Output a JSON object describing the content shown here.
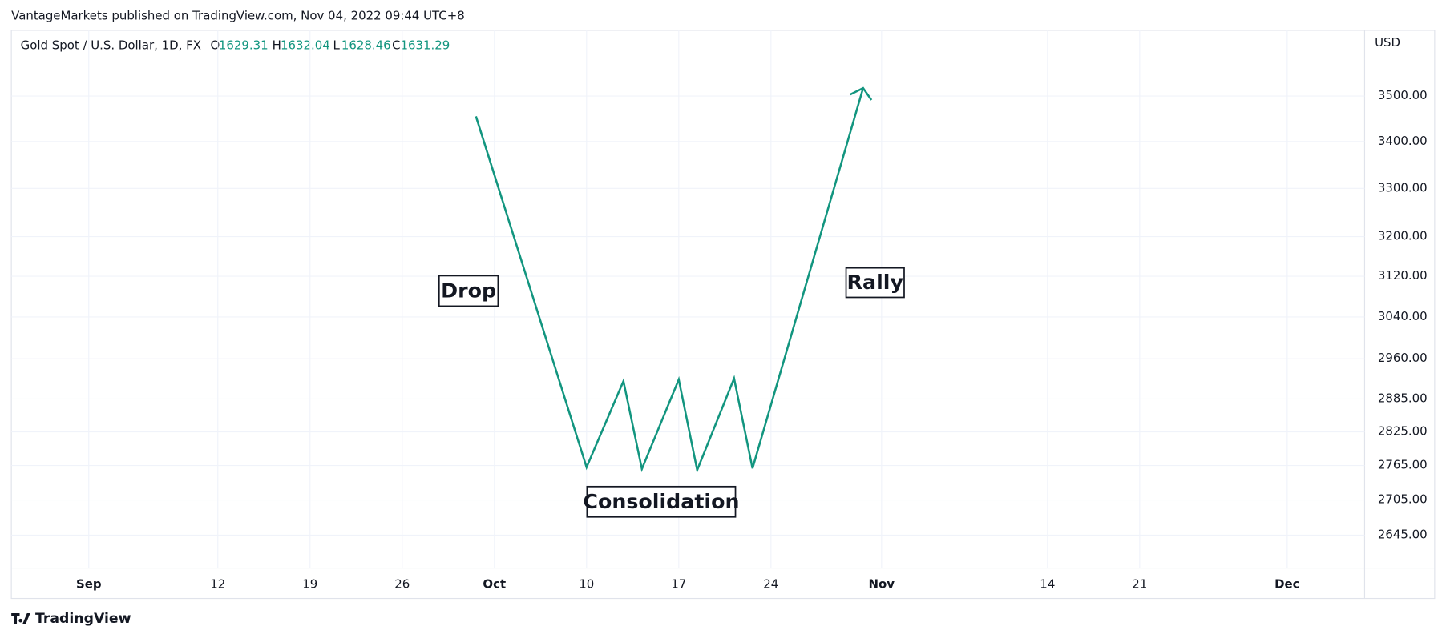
{
  "header": {
    "published": "VantageMarkets published on TradingView.com, Nov 04, 2022 09:44 UTC+8",
    "footer": "TradingView"
  },
  "chart_data": {
    "type": "line",
    "symbol": "Gold Spot / U.S. Dollar, 1D, FX",
    "ohlc": [
      {
        "label": "O",
        "value": 1629.31
      },
      {
        "label": "H",
        "value": 1632.04
      },
      {
        "label": "L",
        "value": 1628.46
      },
      {
        "label": "C",
        "value": 1631.29
      }
    ],
    "currency": "USD",
    "x": [
      21,
      27,
      29,
      30,
      32,
      33,
      35,
      36,
      42
    ],
    "values": [
      3455,
      2762,
      2918,
      2759,
      2921,
      2757,
      2923,
      2760,
      3518
    ],
    "color": "#12957f",
    "annotations": [
      "Drop",
      "Consolidation",
      "Rally"
    ],
    "log_scale": true,
    "xlim": [
      -4.2,
      69.2
    ],
    "ylim": [
      2590,
      3650
    ],
    "xticks": [
      {
        "value": 0,
        "label": "Sep"
      },
      {
        "value": 7,
        "label": "12"
      },
      {
        "value": 12,
        "label": "19"
      },
      {
        "value": 17,
        "label": "26"
      },
      {
        "value": 22,
        "label": "Oct"
      },
      {
        "value": 27,
        "label": "10"
      },
      {
        "value": 32,
        "label": "17"
      },
      {
        "value": 37,
        "label": "24"
      },
      {
        "value": 43,
        "label": "Nov"
      },
      {
        "value": 52,
        "label": "14"
      },
      {
        "value": 57,
        "label": "21"
      },
      {
        "value": 65,
        "label": "Dec"
      }
    ],
    "yticks": [
      {
        "value": 3500,
        "label": "3500.00"
      },
      {
        "value": 3400,
        "label": "3400.00"
      },
      {
        "value": 3300,
        "label": "3300.00"
      },
      {
        "value": 3200,
        "label": "3200.00"
      },
      {
        "value": 3120,
        "label": "3120.00"
      },
      {
        "value": 3040,
        "label": "3040.00"
      },
      {
        "value": 2960,
        "label": "2960.00"
      },
      {
        "value": 2885,
        "label": "2885.00"
      },
      {
        "value": 2825,
        "label": "2825.00"
      },
      {
        "value": 2765,
        "label": "2765.00"
      },
      {
        "value": 2705,
        "label": "2705.00"
      },
      {
        "value": 2645,
        "label": "2645.00"
      }
    ],
    "grid": true
  }
}
